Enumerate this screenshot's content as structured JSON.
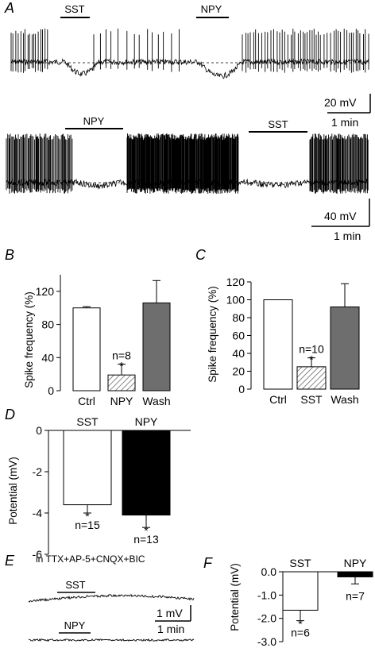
{
  "panelA": {
    "label": "A",
    "trace1": {
      "bars": [
        "SST",
        "NPY"
      ],
      "scale_v": "20 mV",
      "scale_t": "1 min"
    },
    "trace2": {
      "bars": [
        "NPY",
        "SST"
      ],
      "scale_v": "40 mV",
      "scale_t": "1 min"
    }
  },
  "panelE": {
    "label": "E",
    "condition": "in TTX+AP-5+CNQX+BIC",
    "bars": [
      "SST",
      "NPY"
    ],
    "scale_v": "1 mV",
    "scale_t": "1 min"
  },
  "chart_data": [
    {
      "panel": "B",
      "type": "bar",
      "categories": [
        "Ctrl",
        "NPY",
        "Wash"
      ],
      "values": [
        100,
        19,
        106
      ],
      "errors": [
        1.5,
        13,
        27
      ],
      "ylabel": "Spike frequency (%)",
      "ylim": [
        0,
        140
      ],
      "yticks": [
        "0",
        "40",
        "80",
        "120"
      ],
      "annotation": {
        "n": "n=8",
        "star": "*"
      },
      "colors": [
        "#ffffff",
        "hatched",
        "#6e6e6e"
      ]
    },
    {
      "panel": "C",
      "type": "bar",
      "categories": [
        "Ctrl",
        "SST",
        "Wash"
      ],
      "values": [
        100,
        25,
        92
      ],
      "errors": [
        0,
        10,
        26
      ],
      "ylabel": "Spike frequency (%)",
      "ylim": [
        0,
        120
      ],
      "yticks": [
        "0",
        "20",
        "40",
        "60",
        "80",
        "100",
        "120"
      ],
      "annotation": {
        "n": "n=10",
        "star": "*"
      },
      "colors": [
        "#ffffff",
        "hatched",
        "#6e6e6e"
      ]
    },
    {
      "panel": "D",
      "type": "bar",
      "categories": [
        "SST",
        "NPY"
      ],
      "values": [
        -3.6,
        -4.1
      ],
      "errors": [
        0.4,
        0.6
      ],
      "ylabel": "Potential (mV)",
      "ylim": [
        -6,
        0
      ],
      "yticks": [
        "0",
        "-2",
        "-4",
        "-6"
      ],
      "annotations": [
        {
          "n": "n=15",
          "star": "*"
        },
        {
          "n": "n=13",
          "star": "*"
        }
      ],
      "colors": [
        "#ffffff",
        "#000000"
      ]
    },
    {
      "panel": "F",
      "type": "bar",
      "categories": [
        "SST",
        "NPY"
      ],
      "values": [
        -1.65,
        -0.22
      ],
      "errors": [
        0.45,
        0.3
      ],
      "ylabel": "Potential (mV)",
      "ylim": [
        -3,
        0
      ],
      "yticks": [
        "0.0",
        "-1.0",
        "-2.0",
        "-3.0"
      ],
      "annotations": [
        {
          "n": "n=6",
          "star": "*"
        },
        {
          "n": "n=7",
          "star": ""
        }
      ],
      "colors": [
        "#ffffff",
        "#000000"
      ]
    }
  ]
}
